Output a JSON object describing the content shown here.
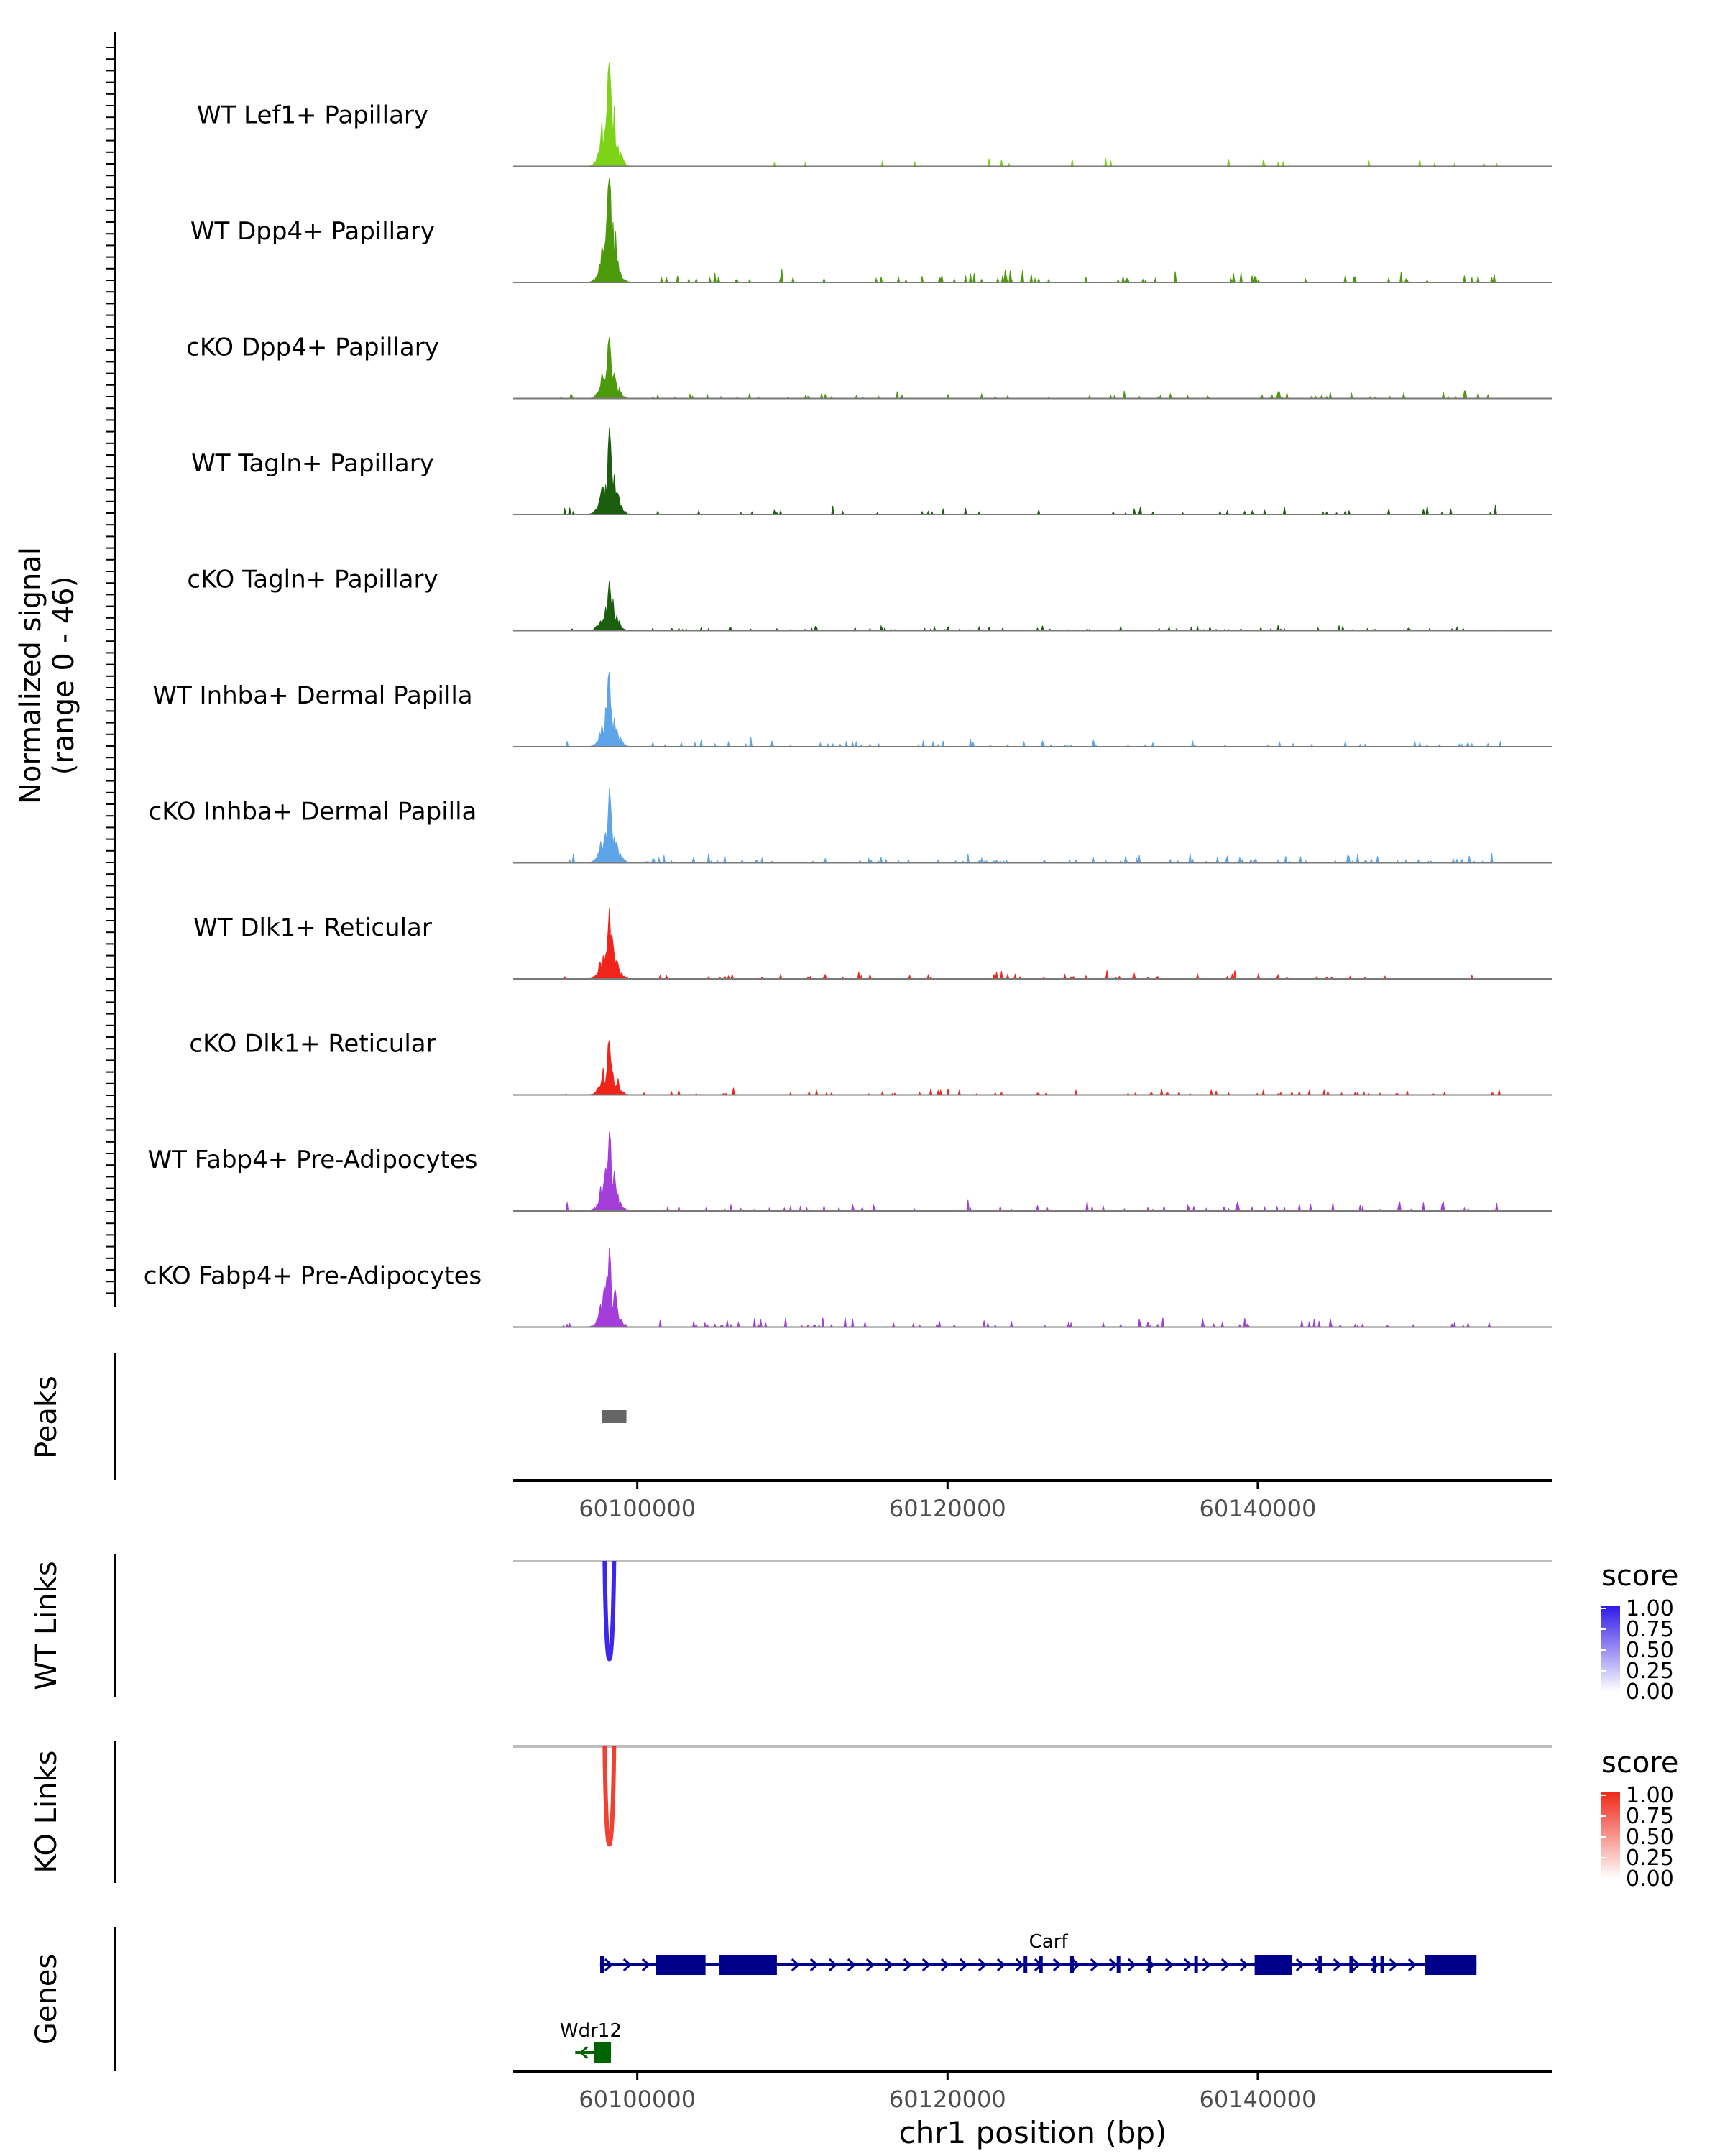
{
  "chart_data": {
    "type": "genome-coverage",
    "chromosome": "chr1",
    "xrange": [
      60092000,
      60159000
    ],
    "xticks": [
      60100000,
      60120000,
      60140000
    ],
    "xtick_labels": [
      "60100000",
      "60120000",
      "60140000"
    ],
    "xlabel": "chr1 position (bp)",
    "coverage": {
      "ylabel_line1": "Normalized signal",
      "ylabel_line2": "(range 0 - 46)",
      "ymax": 46,
      "tracks": [
        {
          "label": "WT Lef1+ Papillary",
          "color": "#7CD317",
          "peak": 46,
          "noise": 0.05,
          "seed": 3
        },
        {
          "label": "WT Dpp4+ Papillary",
          "color": "#4C9A0C",
          "peak": 46,
          "noise": 0.08,
          "seed": 7
        },
        {
          "label": "cKO Dpp4+ Papillary",
          "color": "#4C9A0C",
          "peak": 27,
          "noise": 0.09,
          "seed": 11
        },
        {
          "label": "WT Tagln+ Papillary",
          "color": "#1A5E0E",
          "peak": 38,
          "noise": 0.06,
          "seed": 13
        },
        {
          "label": "cKO Tagln+ Papillary",
          "color": "#1A5E0E",
          "peak": 22,
          "noise": 0.1,
          "seed": 17
        },
        {
          "label": "WT Inhba+ Dermal Papilla",
          "color": "#5DA5E8",
          "peak": 33,
          "noise": 0.08,
          "seed": 19
        },
        {
          "label": "cKO Inhba+ Dermal Papilla",
          "color": "#5DA5E8",
          "peak": 33,
          "noise": 0.14,
          "seed": 23
        },
        {
          "label": "WT Dlk1+ Reticular",
          "color": "#F0241B",
          "peak": 31,
          "noise": 0.07,
          "seed": 29
        },
        {
          "label": "cKO Dlk1+ Reticular",
          "color": "#F0241B",
          "peak": 24,
          "noise": 0.09,
          "seed": 31
        },
        {
          "label": "WT Fabp4+ Pre-Adipocytes",
          "color": "#A43EDB",
          "peak": 35,
          "noise": 0.08,
          "seed": 37
        },
        {
          "label": "cKO Fabp4+ Pre-Adipocytes",
          "color": "#A43EDB",
          "peak": 35,
          "noise": 0.1,
          "seed": 41
        }
      ]
    },
    "peaks": {
      "label": "Peaks",
      "regions": [
        [
          60097700,
          60099300
        ]
      ],
      "color": "#666666"
    },
    "wt_links": {
      "label": "WT Links",
      "legend_title": "score",
      "legend_ticks": [
        "1.00",
        "0.75",
        "0.50",
        "0.25",
        "0.00"
      ],
      "color_high": "#2F18E8",
      "links": [
        {
          "start": 60097900,
          "end": 60098500,
          "score": 0.85
        }
      ]
    },
    "ko_links": {
      "label": "KO Links",
      "legend_title": "score",
      "legend_ticks": [
        "1.00",
        "0.75",
        "0.50",
        "0.25",
        "0.00"
      ],
      "color_high": "#EE2A1A",
      "links": [
        {
          "start": 60097900,
          "end": 60098500,
          "score": 0.75
        }
      ]
    },
    "genes": {
      "label": "Genes",
      "items": [
        {
          "name": "Carf",
          "strand": "+",
          "start": 60097600,
          "end": 60154100,
          "color": "#00008B",
          "exons": [
            [
              60101200,
              60104400
            ],
            [
              60105300,
              60109000
            ],
            [
              60139800,
              60142200
            ],
            [
              60150800,
              60154100
            ]
          ],
          "small_exons": [
            60097700,
            60125000,
            60126000,
            60128000,
            60131000,
            60133000,
            60136000,
            60144000,
            60146000,
            60147500,
            60148000
          ]
        },
        {
          "name": "Wdr12",
          "strand": "-",
          "start": 60096000,
          "end": 60098300,
          "color": "#006400",
          "exons": [
            [
              60097200,
              60098300
            ]
          ],
          "small_exons": []
        }
      ]
    }
  }
}
